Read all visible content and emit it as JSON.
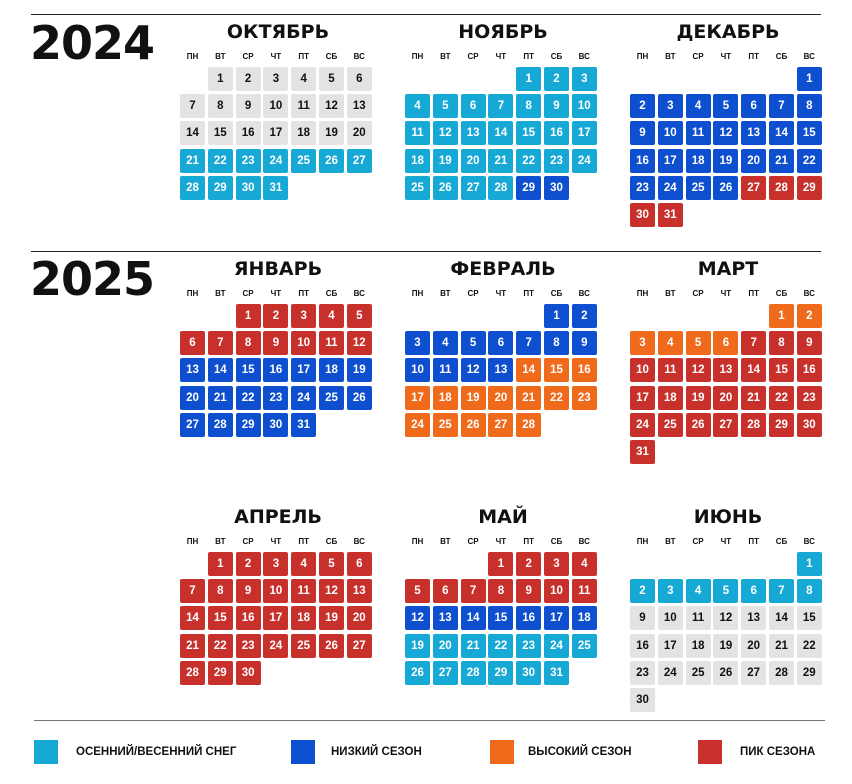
{
  "colors": {
    "autumn_spring_snow": "#17a9d6",
    "low_season": "#0d4fcf",
    "high_season": "#f06a1c",
    "peak_season": "#c8302b",
    "off_season": "#e3e3e3"
  },
  "weekdays": [
    "ПН",
    "ВТ",
    "СР",
    "ЧТ",
    "ПТ",
    "СБ",
    "ВС"
  ],
  "years": [
    {
      "label": "2024",
      "months": [
        {
          "name": "ОКТЯБРЬ",
          "start_weekday": 1,
          "days": 31,
          "periods": [
            {
              "from": 1,
              "to": 20,
              "season": "off_season"
            },
            {
              "from": 21,
              "to": 31,
              "season": "autumn_spring_snow"
            }
          ]
        },
        {
          "name": "НОЯБРЬ",
          "start_weekday": 4,
          "days": 30,
          "periods": [
            {
              "from": 1,
              "to": 28,
              "season": "autumn_spring_snow"
            },
            {
              "from": 29,
              "to": 30,
              "season": "low_season"
            }
          ]
        },
        {
          "name": "ДЕКАБРЬ",
          "start_weekday": 6,
          "days": 31,
          "periods": [
            {
              "from": 1,
              "to": 26,
              "season": "low_season"
            },
            {
              "from": 27,
              "to": 31,
              "season": "peak_season"
            }
          ]
        }
      ]
    },
    {
      "label": "2025",
      "months": [
        {
          "name": "ЯНВАРЬ",
          "start_weekday": 2,
          "days": 31,
          "periods": [
            {
              "from": 1,
              "to": 12,
              "season": "peak_season"
            },
            {
              "from": 13,
              "to": 31,
              "season": "low_season"
            }
          ]
        },
        {
          "name": "ФЕВРАЛЬ",
          "start_weekday": 5,
          "days": 28,
          "periods": [
            {
              "from": 1,
              "to": 13,
              "season": "low_season"
            },
            {
              "from": 14,
              "to": 28,
              "season": "high_season"
            }
          ]
        },
        {
          "name": "МАРТ",
          "start_weekday": 5,
          "days": 31,
          "periods": [
            {
              "from": 1,
              "to": 6,
              "season": "high_season"
            },
            {
              "from": 7,
              "to": 31,
              "season": "peak_season"
            }
          ]
        },
        {
          "name": "АПРЕЛЬ",
          "start_weekday": 1,
          "days": 30,
          "periods": [
            {
              "from": 1,
              "to": 30,
              "season": "peak_season"
            }
          ]
        },
        {
          "name": "МАЙ",
          "start_weekday": 3,
          "days": 31,
          "periods": [
            {
              "from": 1,
              "to": 11,
              "season": "peak_season"
            },
            {
              "from": 12,
              "to": 18,
              "season": "low_season"
            },
            {
              "from": 19,
              "to": 31,
              "season": "autumn_spring_snow"
            }
          ]
        },
        {
          "name": "ИЮНЬ",
          "start_weekday": 6,
          "days": 30,
          "periods": [
            {
              "from": 1,
              "to": 8,
              "season": "autumn_spring_snow"
            },
            {
              "from": 9,
              "to": 30,
              "season": "off_season"
            }
          ]
        }
      ]
    }
  ],
  "legend": [
    {
      "label": "ОСЕННИЙ/ВЕСЕННИЙ СНЕГ",
      "season": "autumn_spring_snow"
    },
    {
      "label": "НИЗКИЙ СЕЗОН",
      "season": "low_season"
    },
    {
      "label": "ВЫСОКИЙ СЕЗОН",
      "season": "high_season"
    },
    {
      "label": "ПИК СЕЗОНА",
      "season": "peak_season"
    }
  ]
}
